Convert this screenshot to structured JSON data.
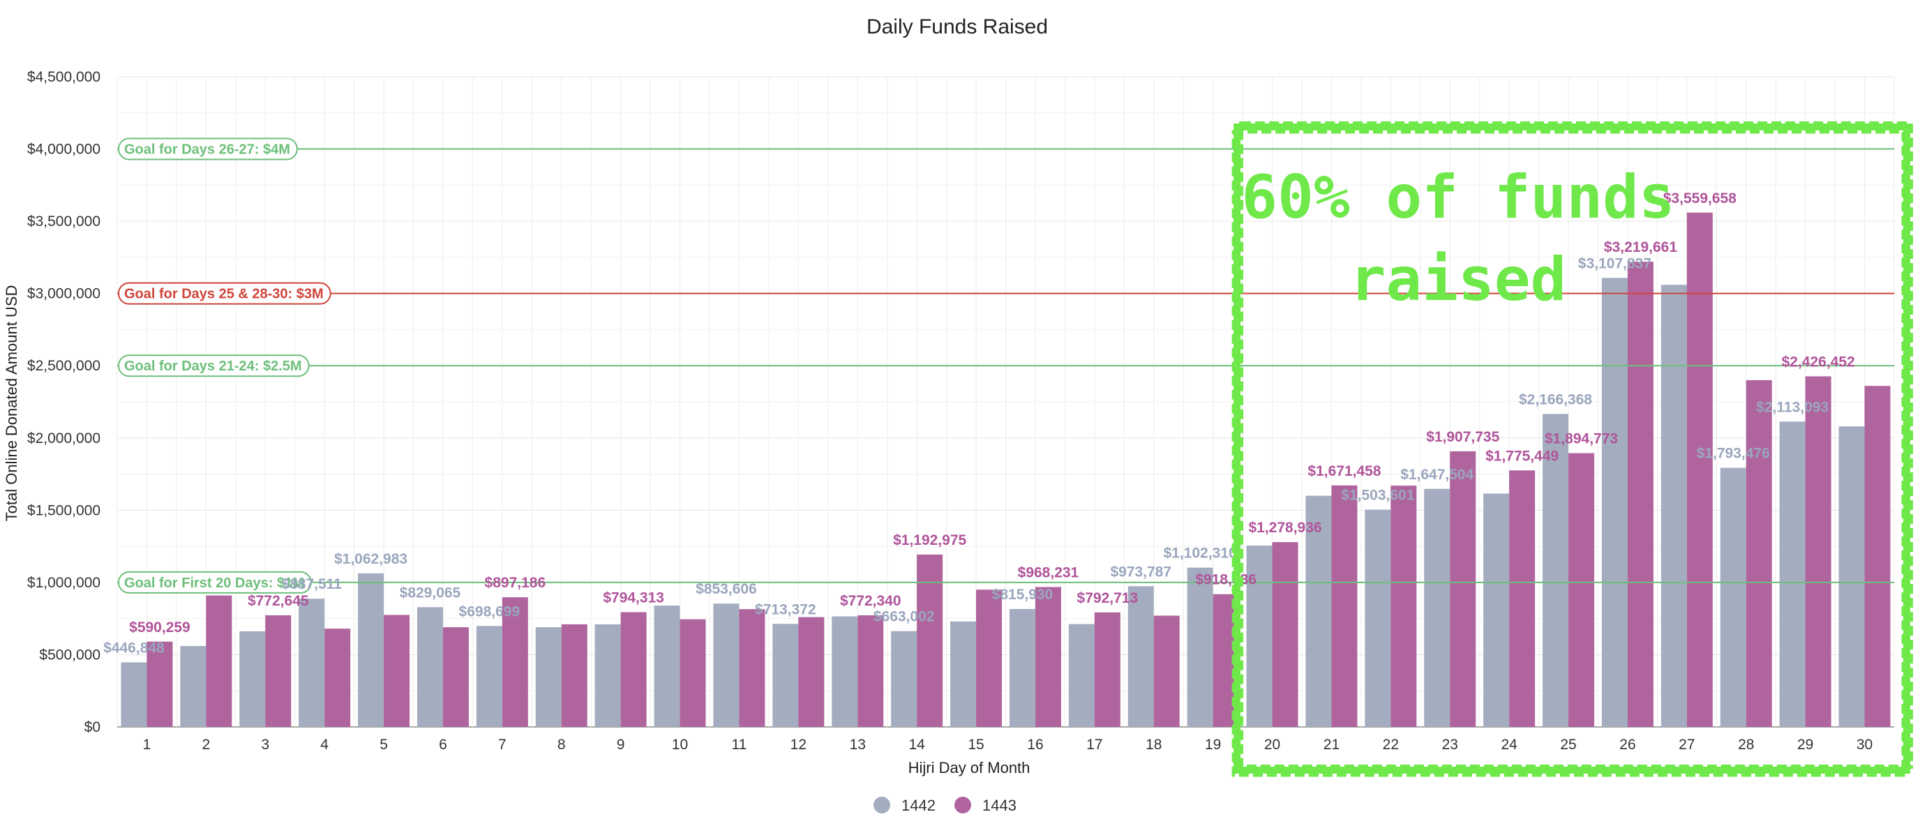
{
  "chart_data": {
    "type": "bar",
    "title": "Daily Funds Raised",
    "xlabel": "Hijri Day of Month",
    "ylabel": "Total Online Donated Amount USD",
    "ylim": [
      0,
      4500000
    ],
    "yticks": [
      "$0",
      "$500,000",
      "$1,000,000",
      "$1,500,000",
      "$2,000,000",
      "$2,500,000",
      "$3,000,000",
      "$3,500,000",
      "$4,000,000",
      "$4,500,000"
    ],
    "grid": true,
    "legend_position": "bottom",
    "categories": [
      "1",
      "2",
      "3",
      "4",
      "5",
      "6",
      "7",
      "8",
      "9",
      "10",
      "11",
      "12",
      "13",
      "14",
      "15",
      "16",
      "17",
      "18",
      "19",
      "20",
      "21",
      "22",
      "23",
      "24",
      "25",
      "26",
      "27",
      "28",
      "29",
      "30"
    ],
    "series": [
      {
        "name": "1442",
        "color": "#a4adbf",
        "values": [
          446848,
          560000,
          662000,
          887511,
          1062983,
          829065,
          698699,
          690000,
          710000,
          840000,
          853606,
          713372,
          765000,
          663002,
          730000,
          815930,
          712000,
          973787,
          1102310,
          1255000,
          1600000,
          1503601,
          1647504,
          1615000,
          2166368,
          3107837,
          3060000,
          1793476,
          2113093,
          2080000
        ],
        "labels": [
          "$446,848",
          "",
          "",
          "$887,511",
          "$1,062,983",
          "$829,065",
          "$698,699",
          "",
          "",
          "",
          "$853,606",
          "$713,372",
          "",
          "$663,002",
          "",
          "$815,930",
          "",
          "$973,787",
          "$1,102,310",
          "",
          "",
          "$1,503,601",
          "$1,647,504",
          "",
          "$2,166,368",
          "$3,107,837",
          "",
          "$1,793,476",
          "$2,113,093",
          ""
        ]
      },
      {
        "name": "1443",
        "color": "#b0649e",
        "values": [
          590259,
          910000,
          772645,
          680000,
          775000,
          690000,
          897186,
          710000,
          794313,
          745000,
          815000,
          760000,
          772340,
          1192975,
          950000,
          968231,
          792713,
          770000,
          918636,
          1278936,
          1671458,
          1670000,
          1907735,
          1775449,
          1894773,
          3219661,
          3559658,
          2400000,
          2426452,
          2360000
        ],
        "labels": [
          "$590,259",
          "",
          "$772,645",
          "",
          "",
          "",
          "$897,186",
          "",
          "$794,313",
          "",
          "",
          "",
          "$772,340",
          "$1,192,975",
          "",
          "$968,231",
          "$792,713",
          "",
          "$918,636",
          "$1,278,936",
          "$1,671,458",
          "",
          "$1,907,735",
          "$1,775,449",
          "$1,894,773",
          "$3,219,661",
          "$3,559,658",
          "",
          "$2,426,452",
          ""
        ]
      }
    ],
    "goal_lines": [
      {
        "label": "Goal for Days 26-27: $4M",
        "value": 4000000,
        "color": "#6cbf7a"
      },
      {
        "label": "Goal for Days 25 & 28-30: $3M",
        "value": 3000000,
        "color": "#d0443a"
      },
      {
        "label": "Goal for Days 21-24: $2.5M",
        "value": 2500000,
        "color": "#6cbf7a"
      },
      {
        "label": "Goal for First 20 Days: $1M",
        "value": 1000000,
        "color": "#6cbf7a"
      }
    ],
    "annotation": {
      "lines": [
        "60% of funds",
        "raised"
      ],
      "color": "#6fe84a",
      "range": [
        "20",
        "30"
      ]
    }
  }
}
